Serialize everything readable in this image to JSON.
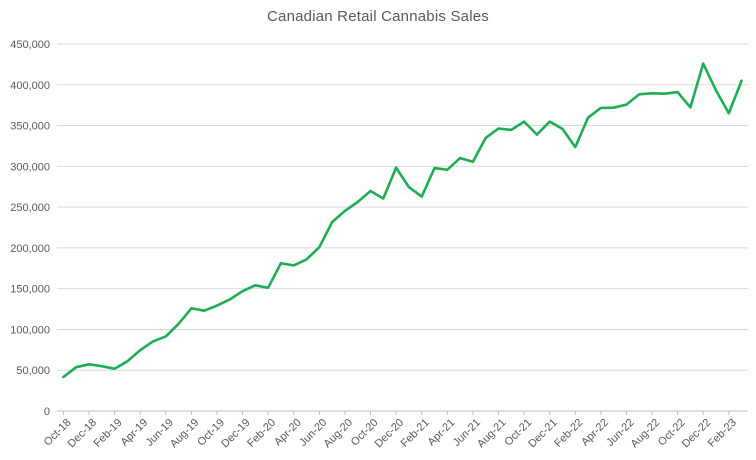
{
  "chart_data": {
    "type": "line",
    "title": "Canadian Retail Cannabis Sales",
    "xlabel": "",
    "ylabel": "",
    "x": [
      "Oct-18",
      "Nov-18",
      "Dec-18",
      "Jan-19",
      "Feb-19",
      "Mar-19",
      "Apr-19",
      "May-19",
      "Jun-19",
      "Jul-19",
      "Aug-19",
      "Sep-19",
      "Oct-19",
      "Nov-19",
      "Dec-19",
      "Jan-20",
      "Feb-20",
      "Mar-20",
      "Apr-20",
      "May-20",
      "Jun-20",
      "Jul-20",
      "Aug-20",
      "Sep-20",
      "Oct-20",
      "Nov-20",
      "Dec-20",
      "Jan-21",
      "Feb-21",
      "Mar-21",
      "Apr-21",
      "May-21",
      "Jun-21",
      "Jul-21",
      "Aug-21",
      "Sep-21",
      "Oct-21",
      "Nov-21",
      "Dec-21",
      "Jan-22",
      "Feb-22",
      "Mar-22",
      "Apr-22",
      "May-22",
      "Jun-22",
      "Jul-22",
      "Aug-22",
      "Sep-22",
      "Oct-22",
      "Nov-22",
      "Dec-22",
      "Jan-23",
      "Feb-23",
      "Mar-23"
    ],
    "values": [
      41700,
      53700,
      57300,
      54900,
      51700,
      60900,
      74600,
      85400,
      91500,
      106900,
      125900,
      123000,
      129200,
      136700,
      146900,
      154100,
      151100,
      181100,
      178500,
      185900,
      200900,
      231600,
      245400,
      256300,
      269800,
      260600,
      298400,
      274500,
      262900,
      297800,
      295800,
      310100,
      305500,
      334900,
      346400,
      344700,
      354800,
      338900,
      354800,
      345900,
      323600,
      359600,
      371600,
      371900,
      375700,
      388300,
      389600,
      389000,
      391000,
      372300,
      426000,
      393100,
      365000,
      405000
    ],
    "x_tick_labels": [
      "Oct-18",
      "Dec-18",
      "Feb-19",
      "Apr-19",
      "Jun-19",
      "Aug-19",
      "Oct-19",
      "Dec-19",
      "Feb-20",
      "Apr-20",
      "Jun-20",
      "Aug-20",
      "Oct-20",
      "Dec-20",
      "Feb-21",
      "Apr-21",
      "Jun-21",
      "Aug-21",
      "Oct-21",
      "Dec-21",
      "Feb-22",
      "Apr-22",
      "Jun-22",
      "Aug-22",
      "Oct-22",
      "Dec-22",
      "Feb-23"
    ],
    "x_tick_every": 2,
    "y_tick_labels": [
      "0",
      "50,000",
      "100,000",
      "150,000",
      "200,000",
      "250,000",
      "300,000",
      "350,000",
      "400,000",
      "450,000"
    ],
    "ylim": [
      0,
      450000
    ],
    "y_step": 50000,
    "grid": true,
    "legend": "none",
    "line_color": "#1ead53",
    "gridline_color": "#d9d9d9",
    "axis_color": "#bfbfbf",
    "text_color": "#595959",
    "background": "#ffffff"
  }
}
